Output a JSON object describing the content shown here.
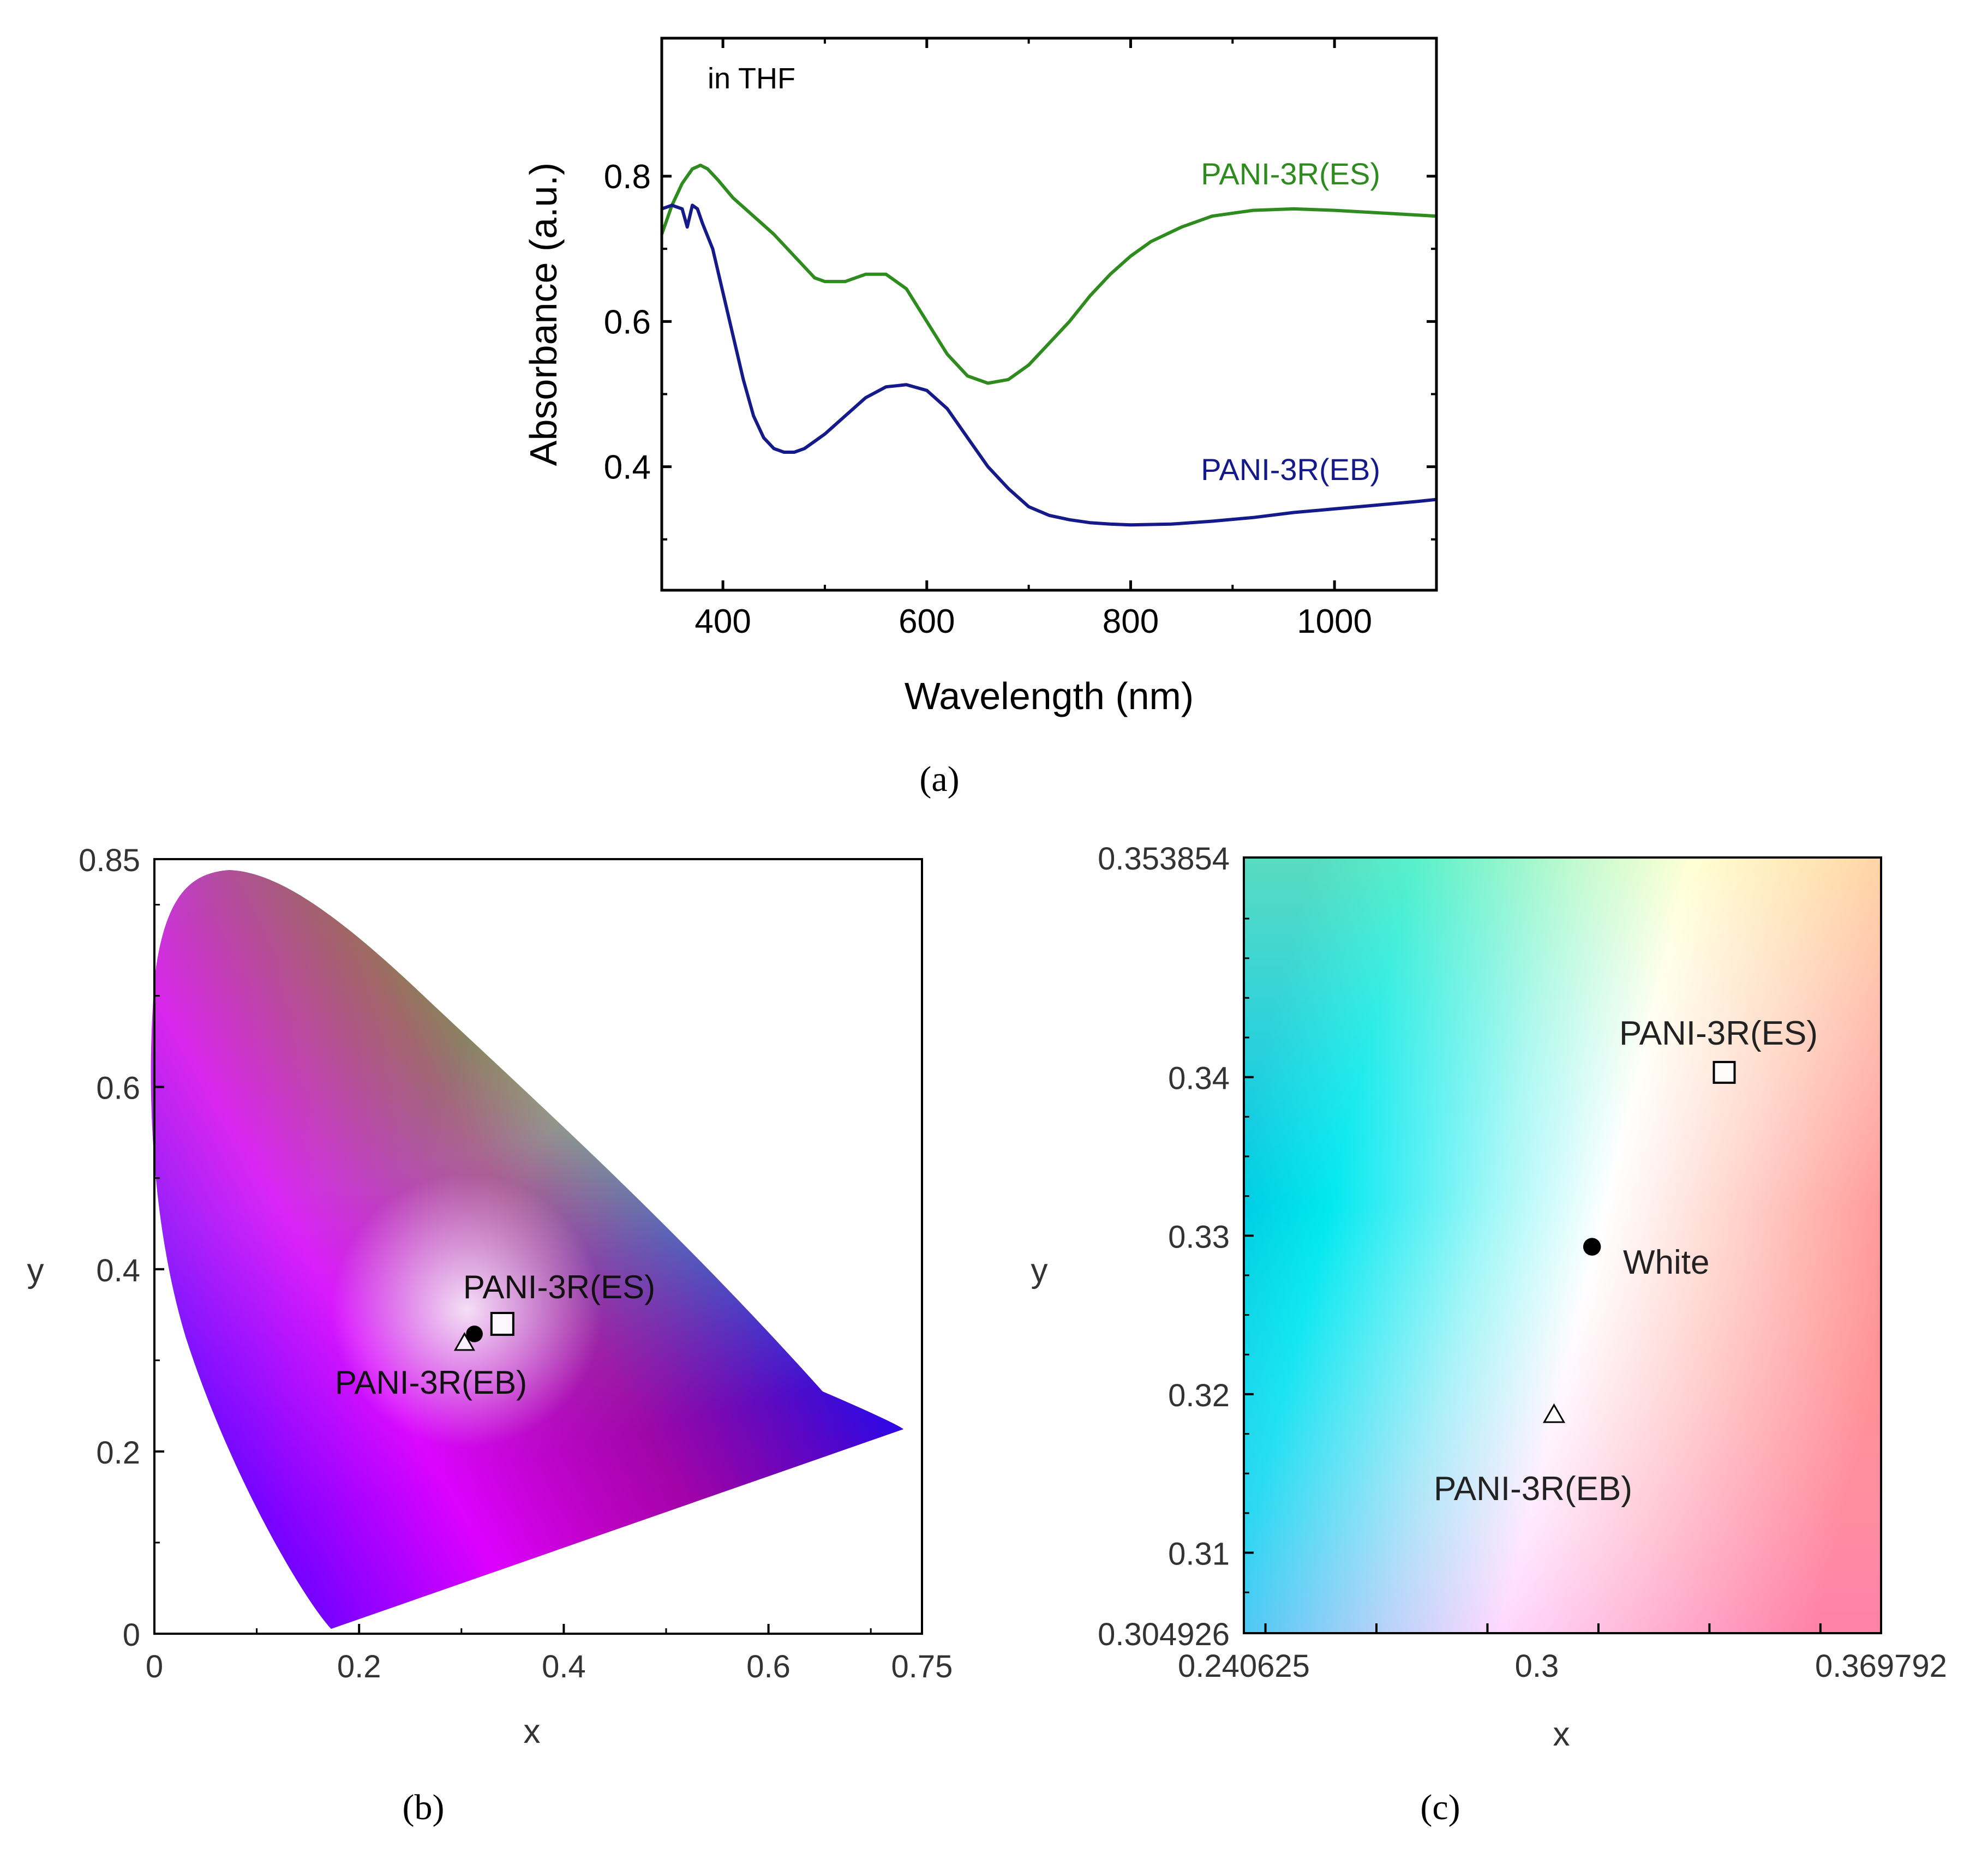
{
  "colors": {
    "es_series": "#2e8b1e",
    "eb_series": "#151a8a",
    "axis": "#000000"
  },
  "panel_labels": {
    "a": "(a)",
    "b": "(b)",
    "c": "(c)"
  },
  "chart_data": [
    {
      "id": "a",
      "type": "line",
      "title": "",
      "annotation": "in THF",
      "xlabel": "Wavelength (nm)",
      "ylabel": "Absorbance (a.u.)",
      "xlim": [
        340,
        1100
      ],
      "ylim": [
        0.23,
        0.99
      ],
      "xticks": [
        400,
        600,
        800,
        1000
      ],
      "xtick_labels": [
        "400",
        "600",
        "800",
        "1000"
      ],
      "yticks": [
        0.4,
        0.6,
        0.8
      ],
      "ytick_labels": [
        "0.4",
        "0.6",
        "0.8"
      ],
      "series": [
        {
          "name": "PANI-3R(ES)",
          "color": "#2e8b1e",
          "x": [
            340,
            350,
            360,
            370,
            378,
            385,
            395,
            410,
            430,
            450,
            470,
            490,
            500,
            520,
            540,
            560,
            580,
            600,
            620,
            640,
            660,
            680,
            700,
            720,
            740,
            760,
            780,
            800,
            820,
            850,
            880,
            920,
            960,
            1000,
            1050,
            1100
          ],
          "y": [
            0.72,
            0.76,
            0.79,
            0.81,
            0.815,
            0.81,
            0.795,
            0.77,
            0.745,
            0.72,
            0.69,
            0.66,
            0.655,
            0.655,
            0.665,
            0.665,
            0.645,
            0.6,
            0.555,
            0.525,
            0.515,
            0.52,
            0.54,
            0.57,
            0.6,
            0.635,
            0.665,
            0.69,
            0.71,
            0.73,
            0.745,
            0.753,
            0.755,
            0.753,
            0.749,
            0.745
          ]
        },
        {
          "name": "PANI-3R(EB)",
          "color": "#151a8a",
          "x": [
            340,
            350,
            360,
            365,
            370,
            375,
            380,
            390,
            400,
            410,
            420,
            430,
            440,
            450,
            460,
            470,
            480,
            490,
            500,
            520,
            540,
            560,
            580,
            600,
            620,
            640,
            660,
            680,
            700,
            720,
            740,
            760,
            780,
            800,
            840,
            880,
            920,
            960,
            1000,
            1040,
            1080,
            1100
          ],
          "y": [
            0.755,
            0.76,
            0.755,
            0.73,
            0.76,
            0.755,
            0.735,
            0.7,
            0.64,
            0.58,
            0.52,
            0.47,
            0.44,
            0.425,
            0.42,
            0.42,
            0.425,
            0.435,
            0.445,
            0.47,
            0.495,
            0.51,
            0.513,
            0.505,
            0.48,
            0.44,
            0.4,
            0.37,
            0.345,
            0.333,
            0.327,
            0.323,
            0.321,
            0.32,
            0.321,
            0.325,
            0.33,
            0.337,
            0.342,
            0.347,
            0.352,
            0.355
          ]
        }
      ]
    },
    {
      "id": "b",
      "type": "scatter",
      "title": "",
      "xlabel": "x",
      "ylabel": "y",
      "xlim": [
        0,
        0.75
      ],
      "ylim": [
        0,
        0.85
      ],
      "xticks": [
        0,
        0.2,
        0.4,
        0.6,
        0.75
      ],
      "xtick_labels": [
        "0",
        "0.2",
        "0.4",
        "0.6",
        "0.75"
      ],
      "yticks": [
        0,
        0.2,
        0.4,
        0.6,
        0.85
      ],
      "ytick_labels": [
        "0",
        "0.2",
        "0.4",
        "0.6",
        "0.85"
      ],
      "background": "CIE 1931 chromaticity diagram",
      "points": [
        {
          "name": "PANI-3R(ES)",
          "marker": "square",
          "x": 0.34,
          "y": 0.34
        },
        {
          "name": "White",
          "marker": "circle",
          "x": 0.3127,
          "y": 0.329
        },
        {
          "name": "PANI-3R(EB)",
          "marker": "triangle",
          "x": 0.303,
          "y": 0.319
        }
      ],
      "labels": [
        "PANI-3R(ES)",
        "PANI-3R(EB)"
      ]
    },
    {
      "id": "c",
      "type": "scatter",
      "title": "",
      "xlabel": "x",
      "ylabel": "y",
      "xlim": [
        0.240625,
        0.369792
      ],
      "ylim": [
        0.304926,
        0.353854
      ],
      "xticks": [
        0.240625,
        0.3,
        0.369792
      ],
      "xtick_labels": [
        "0.240625",
        "0.3",
        "0.369792"
      ],
      "yticks": [
        0.304926,
        0.31,
        0.32,
        0.33,
        0.34,
        0.353854
      ],
      "ytick_labels": [
        "0.304926",
        "0.31",
        "0.32",
        "0.33",
        "0.34",
        "0.353854"
      ],
      "background": "CIE 1931 chromaticity diagram (zoomed)",
      "points": [
        {
          "name": "PANI-3R(ES)",
          "marker": "square",
          "x": 0.338,
          "y": 0.3403
        },
        {
          "name": "White",
          "marker": "circle",
          "x": 0.3112,
          "y": 0.3293
        },
        {
          "name": "PANI-3R(EB)",
          "marker": "triangle",
          "x": 0.3035,
          "y": 0.3187
        }
      ],
      "labels": [
        "PANI-3R(ES)",
        "White",
        "PANI-3R(EB)"
      ]
    }
  ]
}
